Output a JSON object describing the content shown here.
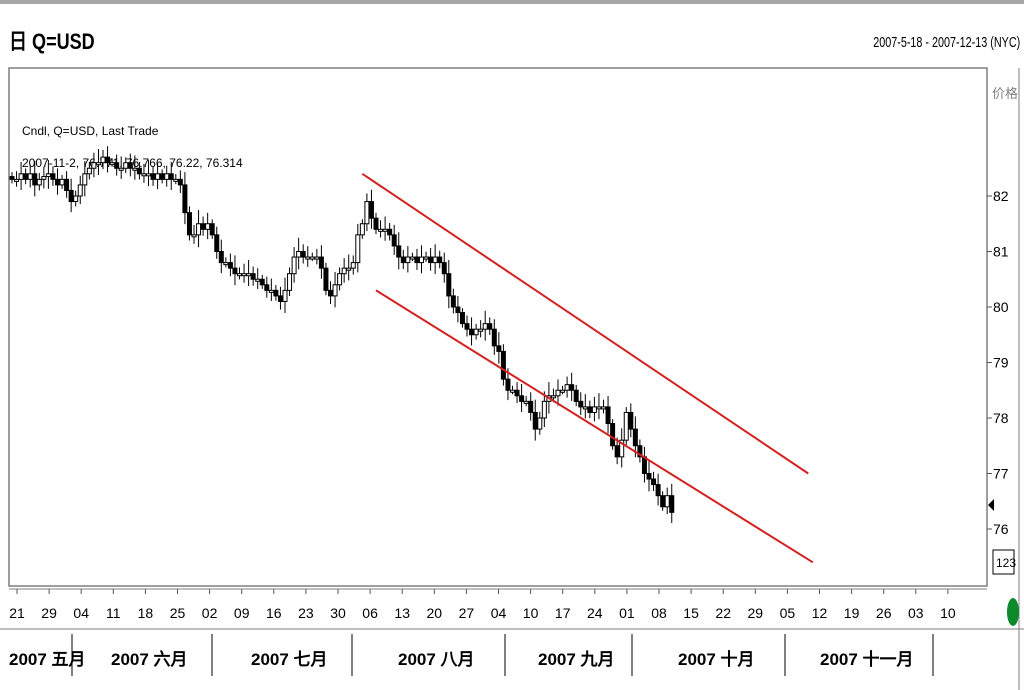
{
  "header": {
    "title": "日 Q=USD",
    "date_range": "2007-5-18 - 2007-12-13 (NYC)"
  },
  "legend": {
    "line1": "Cndl, Q=USD, Last Trade",
    "line2": "2007-11-2, 76.771, 76.766, 76.22, 76.314"
  },
  "axis": {
    "y_title": "价格",
    "volume_box": "123"
  },
  "colors": {
    "channel": "#d42020",
    "candle": "#000000",
    "frame": "#7f7f7f",
    "status_dot": "#0c8a2a"
  },
  "chart_data": {
    "type": "candlestick",
    "title": "Q=USD",
    "ylim": [
      75.4,
      82.8
    ],
    "y_ticks": [
      76,
      77,
      78,
      79,
      80,
      81,
      82
    ],
    "x_tick_labels": [
      "21",
      "29",
      "04",
      "11",
      "18",
      "25",
      "02",
      "09",
      "16",
      "23",
      "30",
      "06",
      "13",
      "20",
      "27",
      "04",
      "10",
      "17",
      "24",
      "01",
      "08",
      "15",
      "22",
      "29",
      "05",
      "12",
      "19",
      "26",
      "03",
      "10"
    ],
    "months": [
      "2007 五月",
      "2007 六月",
      "2007 七月",
      "2007 八月",
      "2007 九月",
      "2007 十月",
      "2007 十一月"
    ],
    "last_candle": {
      "date": "2007-11-2",
      "open": 76.771,
      "high": 76.766,
      "low": 76.22,
      "close": 76.314
    },
    "channel_upper": [
      {
        "index": 77,
        "value": 82.4
      },
      {
        "index": 175,
        "value": 77.0
      }
    ],
    "channel_lower": [
      {
        "index": 80,
        "value": 80.3
      },
      {
        "index": 176,
        "value": 75.4
      }
    ],
    "close_path": [
      82.3,
      82.3,
      82.4,
      82.3,
      82.4,
      82.2,
      82.3,
      82.35,
      82.4,
      82.3,
      82.2,
      82.3,
      82.1,
      81.9,
      82.0,
      82.2,
      82.4,
      82.5,
      82.6,
      82.6,
      82.7,
      82.6,
      82.6,
      82.5,
      82.5,
      82.6,
      82.5,
      82.5,
      82.4,
      82.4,
      82.4,
      82.3,
      82.4,
      82.3,
      82.4,
      82.3,
      82.3,
      82.2,
      81.7,
      81.3,
      81.3,
      81.5,
      81.4,
      81.5,
      81.3,
      81.0,
      80.8,
      80.8,
      80.7,
      80.6,
      80.6,
      80.6,
      80.6,
      80.5,
      80.5,
      80.4,
      80.3,
      80.3,
      80.2,
      80.1,
      80.3,
      80.6,
      80.9,
      81.0,
      80.9,
      80.9,
      80.9,
      80.9,
      80.7,
      80.3,
      80.2,
      80.4,
      80.6,
      80.7,
      80.7,
      80.8,
      81.3,
      81.5,
      81.9,
      81.6,
      81.4,
      81.4,
      81.4,
      81.3,
      81.1,
      80.9,
      80.8,
      80.9,
      80.9,
      80.8,
      80.9,
      80.9,
      80.8,
      80.9,
      80.8,
      80.6,
      80.2,
      80.0,
      79.9,
      79.7,
      79.6,
      79.5,
      79.6,
      79.6,
      79.7,
      79.6,
      79.3,
      79.2,
      78.7,
      78.5,
      78.5,
      78.4,
      78.3,
      78.3,
      78.1,
      77.8,
      78.0,
      78.3,
      78.4,
      78.4,
      78.5,
      78.5,
      78.6,
      78.5,
      78.3,
      78.2,
      78.2,
      78.1,
      78.2,
      78.2,
      78.2,
      77.9,
      77.5,
      77.3,
      77.6,
      78.1,
      77.8,
      77.5,
      77.3,
      77.0,
      76.9,
      76.8,
      76.6,
      76.4,
      76.6,
      76.3
    ]
  }
}
